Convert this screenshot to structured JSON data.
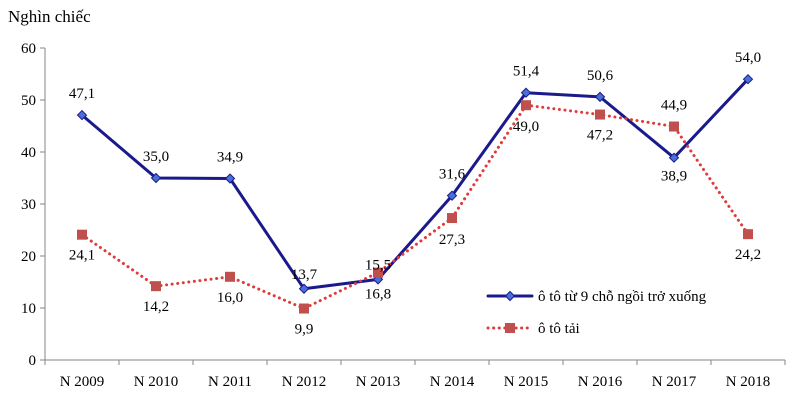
{
  "chart_data": {
    "type": "line",
    "title": "",
    "xlabel": "",
    "ylabel": "Nghìn chiếc",
    "ylim": [
      0,
      60
    ],
    "yticks": [
      0,
      10,
      20,
      30,
      40,
      50,
      60
    ],
    "grid": false,
    "legend_position": "bottom-right",
    "categories": [
      "N 2009",
      "N 2010",
      "N 2011",
      "N 2012",
      "N 2013",
      "N 2014",
      "N 2015",
      "N 2016",
      "N 2017",
      "N 2018"
    ],
    "series": [
      {
        "name": "ô tô từ 9 chỗ ngồi trở xuống",
        "color": "#1a1a8c",
        "line_style": "solid",
        "marker": "diamond",
        "values": [
          47.1,
          35.0,
          34.9,
          13.7,
          15.5,
          31.6,
          51.4,
          50.6,
          38.9,
          54.0
        ],
        "labels": [
          "47,1",
          "35,0",
          "34,9",
          "13,7",
          "15,5",
          "31,6",
          "51,4",
          "50,6",
          "38,9",
          "54,0"
        ]
      },
      {
        "name": "ô tô tải",
        "color": "#e03a3a",
        "marker_color": "#c0504d",
        "line_style": "dotted",
        "marker": "square",
        "values": [
          24.1,
          14.2,
          16.0,
          9.9,
          16.8,
          27.3,
          49.0,
          47.2,
          44.9,
          24.2
        ],
        "labels": [
          "24,1",
          "14,2",
          "16,0",
          "9,9",
          "16,8",
          "27,3",
          "49,0",
          "47,2",
          "44,9",
          "24,2"
        ]
      }
    ]
  }
}
